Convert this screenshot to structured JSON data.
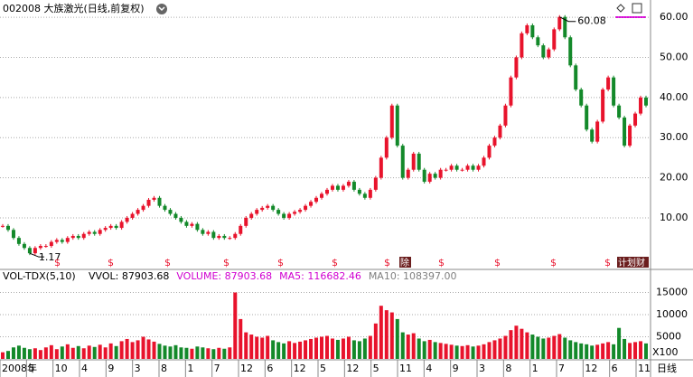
{
  "chart_data": [
    {
      "type": "stock",
      "title": "002008 大族激光(日线,前复权)",
      "series": [
        {
          "name": "close",
          "up_color": "#e8132c",
          "down_color": "#13892a",
          "values": [
            8,
            7,
            5,
            3.5,
            2.5,
            1.17,
            2.5,
            3,
            3,
            4,
            4.5,
            4,
            5,
            5.5,
            5,
            6,
            6.5,
            6,
            7,
            7.5,
            8,
            7.5,
            9,
            10,
            11,
            12,
            13,
            14.5,
            15,
            13,
            12,
            11,
            10,
            9,
            8,
            8.5,
            7,
            6,
            6.5,
            5,
            5.5,
            5,
            5,
            6,
            8,
            10,
            11,
            12,
            12.5,
            13,
            12,
            11,
            10,
            11,
            11.5,
            12,
            13,
            14,
            15,
            16,
            17,
            18,
            17,
            18,
            19,
            17,
            16,
            15,
            17,
            20,
            25,
            30,
            38,
            28,
            20,
            22,
            26,
            22,
            19,
            21,
            20,
            22,
            22,
            23,
            22,
            22,
            23,
            22,
            23,
            25,
            28,
            30,
            33,
            38,
            45,
            50,
            56,
            58,
            55,
            53,
            50,
            52,
            57,
            60.08,
            55,
            48,
            42,
            38,
            32,
            29,
            34,
            42,
            45,
            38,
            35,
            28,
            33,
            36,
            40,
            38
          ]
        }
      ],
      "ylim": [
        -2.4,
        64.3
      ],
      "yticks": [
        {
          "value": 10,
          "label": "10.00"
        },
        {
          "value": 20,
          "label": "20.00"
        },
        {
          "value": 30,
          "label": "30.00"
        },
        {
          "value": 40,
          "label": "40.00"
        },
        {
          "value": 50,
          "label": "50.00"
        },
        {
          "value": 60,
          "label": "60.00"
        }
      ],
      "grid": true,
      "events": [
        "$",
        "$",
        "$",
        "$",
        "$",
        "$",
        "$",
        "除",
        "$",
        "$",
        "$",
        "$",
        "计划财"
      ]
    },
    {
      "type": "volume",
      "indicator": "VOL-TDX(5,10)",
      "legend": [
        {
          "text": "VVOL: 87903.68",
          "color": "#000000"
        },
        {
          "text": "VOLUME: 87903.68",
          "color": "#d000d0"
        },
        {
          "text": "MA5: 116682.46",
          "color": "#d000d0"
        },
        {
          "text": "MA10: 108397.00",
          "color": "#808080"
        }
      ],
      "unit": "X100",
      "values": [
        1500,
        1800,
        2600,
        3000,
        2500,
        2200,
        2400,
        2000,
        2600,
        3100,
        2200,
        2800,
        3300,
        2500,
        2900,
        2400,
        3000,
        2700,
        3200,
        2600,
        3500,
        2900,
        4000,
        4500,
        3800,
        4200,
        5000,
        4400,
        3900,
        3400,
        3000,
        2800,
        3100,
        2600,
        2500,
        2300,
        2800,
        2600,
        2400,
        2200,
        2500,
        2300,
        2600,
        15000,
        9000,
        6000,
        5500,
        5000,
        4800,
        5200,
        4200,
        3800,
        3500,
        4000,
        3600,
        3900,
        4200,
        4500,
        4800,
        5000,
        5200,
        4600,
        4300,
        4600,
        5000,
        4200,
        4000,
        4600,
        5200,
        8000,
        12000,
        11000,
        10500,
        9000,
        6000,
        5500,
        5800,
        4600,
        4000,
        4300,
        3800,
        3600,
        3400,
        3200,
        3000,
        2900,
        3100,
        2800,
        3000,
        3300,
        3800,
        4200,
        4600,
        5200,
        6500,
        7500,
        6800,
        6000,
        5500,
        5000,
        4600,
        4800,
        5200,
        5600,
        4800,
        4200,
        3800,
        3500,
        3300,
        3000,
        3200,
        3500,
        3800,
        3300,
        7000,
        4500,
        3600,
        3800,
        4000,
        3500
      ],
      "ylim": [
        0,
        17350
      ],
      "yticks": [
        5000,
        10000,
        15000
      ],
      "grid": true,
      "xlabels": [
        "2008年",
        "5",
        "10",
        "4",
        "9",
        "3",
        "8",
        "1",
        "7",
        "12",
        "6",
        "12",
        "5",
        "12",
        "5",
        "11",
        "4",
        "9",
        "3",
        "8",
        "1",
        "7",
        "12",
        "6",
        "11"
      ],
      "period": "日线"
    }
  ]
}
